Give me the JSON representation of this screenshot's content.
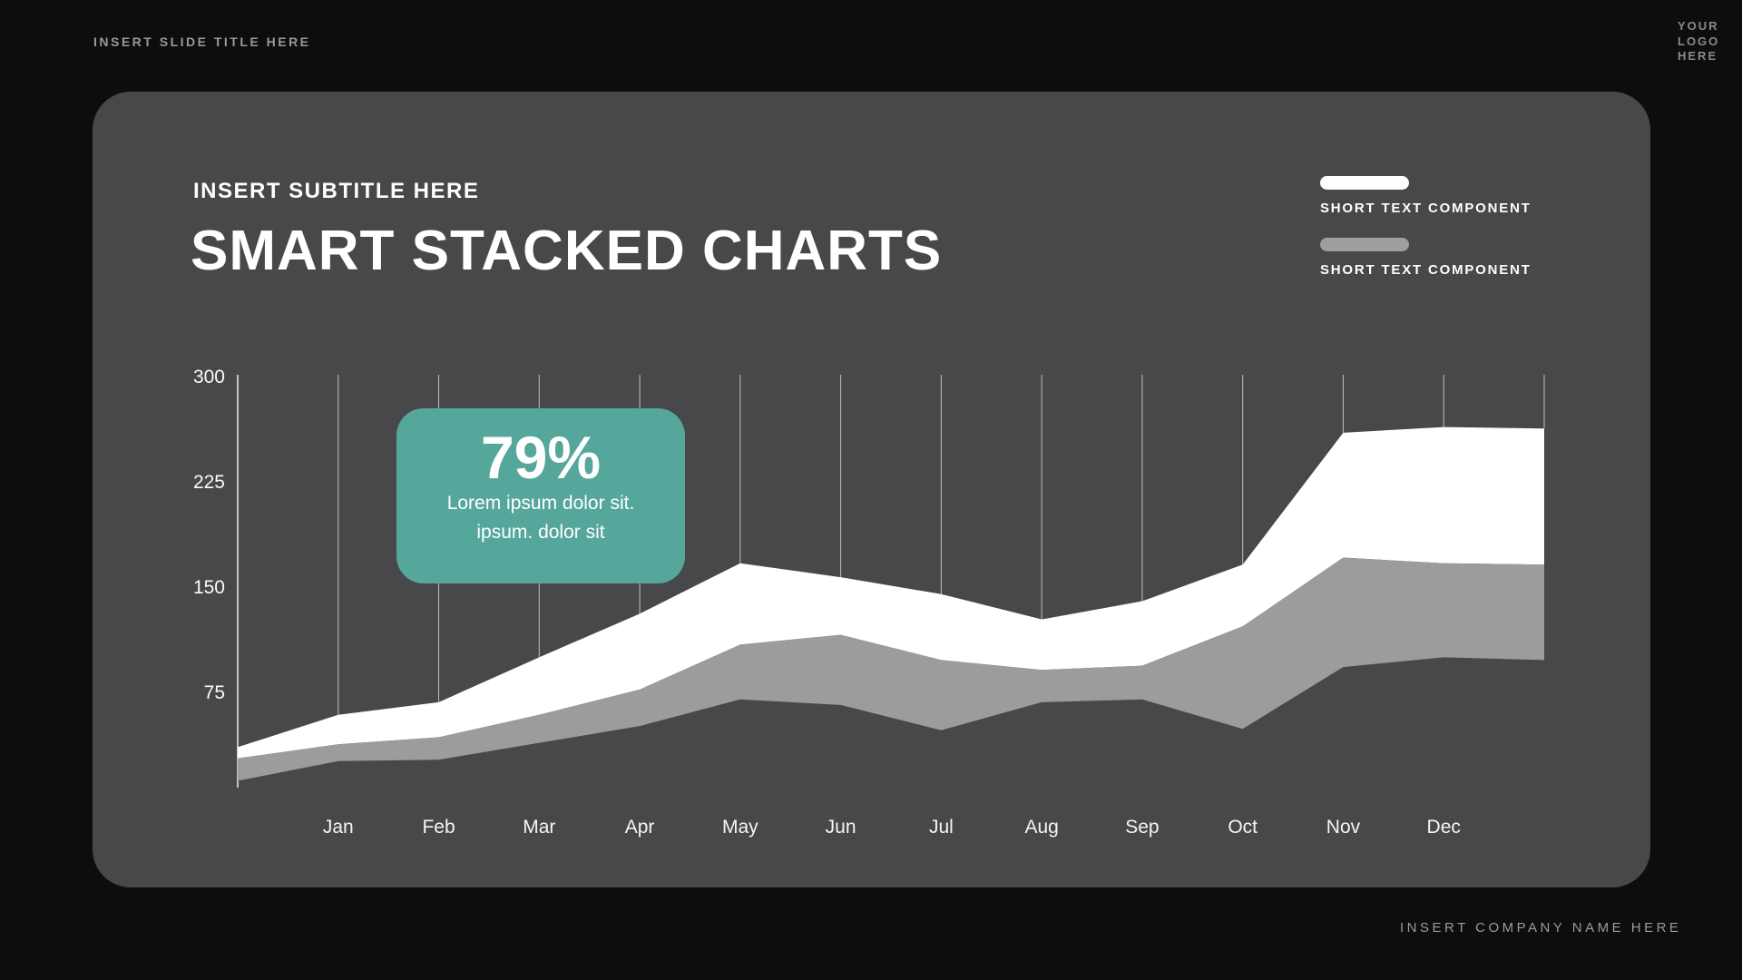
{
  "page": {
    "slide_title": "INSERT SLIDE TITLE HERE",
    "logo_lines": [
      "YOUR",
      "LOGO",
      "HERE"
    ],
    "company_name": "INSERT COMPANY NAME HERE"
  },
  "card": {
    "subtitle": "INSERT SUBTITLE HERE",
    "title": "SMART STACKED CHARTS",
    "legend": [
      {
        "label": "SHORT TEXT COMPONENT",
        "color": "#ffffff"
      },
      {
        "label": "SHORT TEXT COMPONENT",
        "color": "#9e9e9e"
      }
    ]
  },
  "tooltip": {
    "value": "79%",
    "line1": "Lorem ipsum dolor sit.",
    "line2": "ipsum. dolor sit",
    "bg_color": "#56a79b"
  },
  "chart_data": {
    "type": "area",
    "stacked": true,
    "categories": [
      "Jan",
      "Feb",
      "Mar",
      "Apr",
      "May",
      "Jun",
      "Jul",
      "Aug",
      "Sep",
      "Oct",
      "Nov",
      "Dec"
    ],
    "edge_points": true,
    "ylim": [
      0,
      300
    ],
    "y_ticks": [
      300,
      225,
      150,
      75
    ],
    "grid": "vertical",
    "legend_position": "top-right",
    "series": [
      {
        "name": "SHORT TEXT COMPONENT",
        "color": "#ffffff",
        "upper": [
          36,
          59,
          68,
          100,
          131,
          167,
          157,
          145,
          127,
          140,
          166,
          260,
          264,
          263
        ],
        "lower": [
          28,
          38,
          43,
          59,
          77,
          109,
          116,
          98,
          91,
          94,
          122,
          171,
          167,
          166
        ]
      },
      {
        "name": "SHORT TEXT COMPONENT",
        "color": "#9c9c9c",
        "upper": [
          28,
          38,
          43,
          59,
          77,
          109,
          116,
          98,
          91,
          94,
          122,
          171,
          167,
          166
        ],
        "lower": [
          12,
          26,
          27,
          39,
          51,
          70,
          66,
          48,
          68,
          70,
          49,
          93,
          100,
          98
        ]
      }
    ]
  }
}
